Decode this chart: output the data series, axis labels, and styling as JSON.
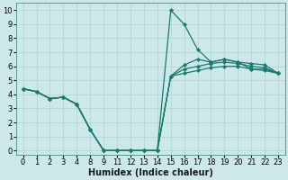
{
  "xlabel": "Humidex (Indice chaleur)",
  "bg_color": "#cce8e8",
  "grid_color": "#b8d8d8",
  "line_color": "#1a7a6e",
  "xlim": [
    -0.5,
    19.5
  ],
  "ylim": [
    -0.3,
    10.5
  ],
  "xtick_labels": [
    "0",
    "1",
    "2",
    "3",
    "4",
    "8",
    "9",
    "11",
    "12",
    "13",
    "14",
    "15",
    "16",
    "17",
    "18",
    "19",
    "20",
    "21",
    "22",
    "23"
  ],
  "yticks": [
    0,
    1,
    2,
    3,
    4,
    5,
    6,
    7,
    8,
    9,
    10
  ],
  "lines": [
    {
      "xi": [
        0,
        1,
        2,
        3,
        4,
        5,
        6,
        7,
        8,
        9,
        10,
        11,
        12,
        13,
        14,
        15,
        16,
        17,
        18,
        19
      ],
      "y": [
        4.4,
        4.2,
        3.7,
        3.8,
        3.3,
        1.5,
        0.0,
        0.0,
        0.0,
        0.0,
        0.0,
        10.0,
        9.0,
        7.2,
        6.3,
        6.5,
        6.3,
        6.2,
        6.1,
        5.5
      ]
    },
    {
      "xi": [
        0,
        1,
        2,
        3,
        4,
        5,
        6,
        7,
        8,
        9,
        10,
        11,
        12,
        13,
        14,
        15,
        16,
        17,
        18,
        19
      ],
      "y": [
        4.4,
        4.2,
        3.7,
        3.8,
        3.3,
        1.5,
        0.0,
        0.0,
        0.0,
        0.0,
        0.0,
        5.3,
        6.1,
        6.5,
        6.3,
        6.5,
        6.3,
        5.8,
        5.8,
        5.5
      ]
    },
    {
      "xi": [
        0,
        1,
        2,
        3,
        4,
        5,
        6,
        7,
        8,
        9,
        10,
        11,
        12,
        13,
        14,
        15,
        16,
        17,
        18,
        19
      ],
      "y": [
        4.4,
        4.2,
        3.7,
        3.8,
        3.3,
        1.5,
        0.0,
        0.0,
        0.0,
        0.0,
        0.0,
        5.3,
        5.8,
        6.0,
        6.2,
        6.3,
        6.2,
        6.0,
        5.9,
        5.5
      ]
    },
    {
      "xi": [
        0,
        1,
        2,
        3,
        4,
        5,
        6,
        7,
        8,
        9,
        10,
        11,
        12,
        13,
        14,
        15,
        16,
        17,
        18,
        19
      ],
      "y": [
        4.4,
        4.2,
        3.7,
        3.8,
        3.3,
        1.5,
        0.0,
        0.0,
        0.0,
        0.0,
        0.0,
        5.3,
        5.5,
        5.7,
        5.9,
        6.0,
        6.0,
        5.8,
        5.7,
        5.5
      ]
    }
  ],
  "marker": "D",
  "markersize": 2.2,
  "linewidth": 0.9,
  "font_size": 6
}
